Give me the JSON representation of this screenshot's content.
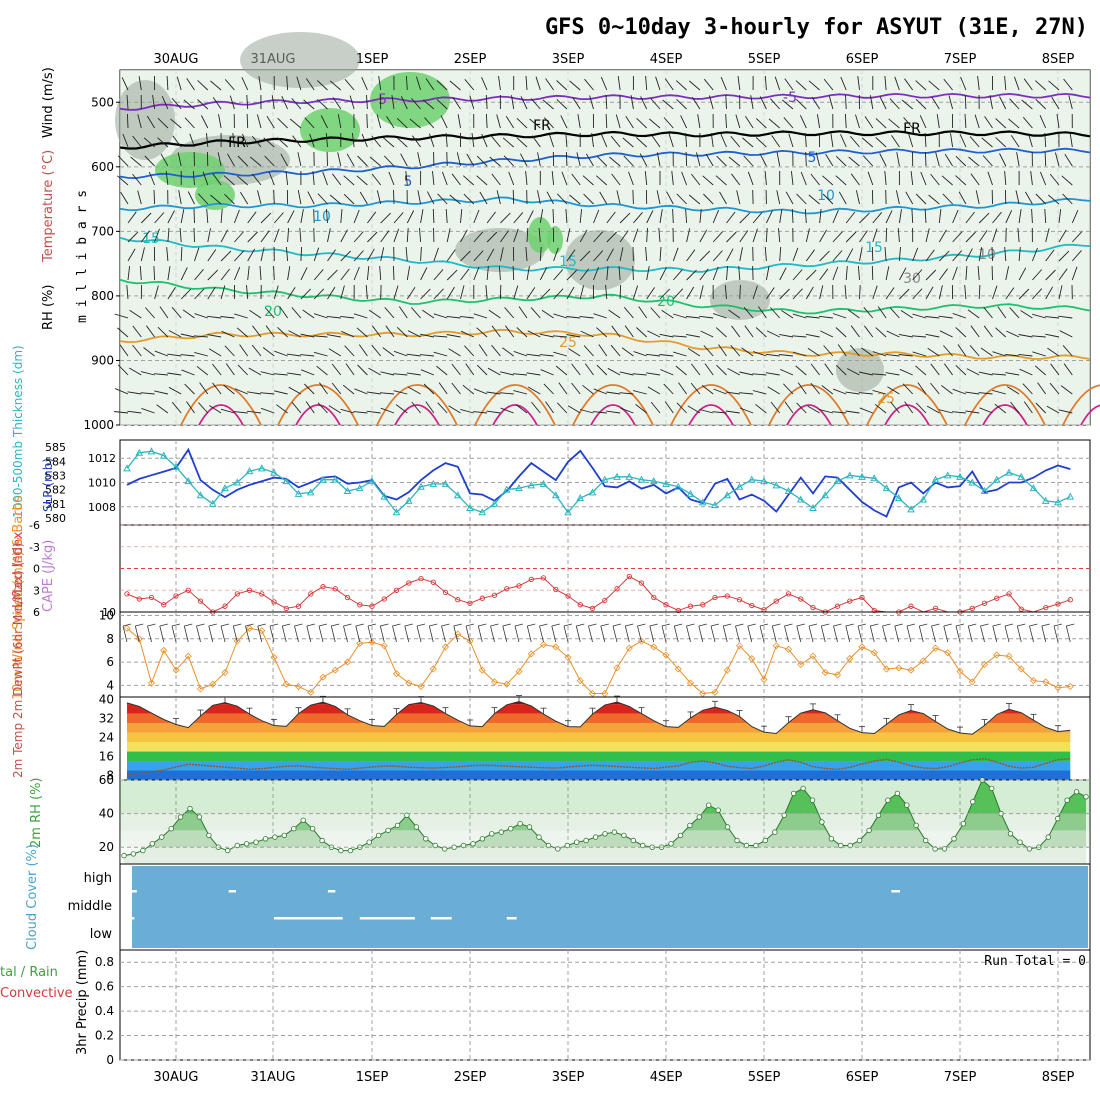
{
  "title": "GFS 0~10day 3-hourly for ASYUT (31E, 27N)",
  "dates": [
    "30AUG",
    "31AUG",
    "1SEP",
    "2SEP",
    "3SEP",
    "4SEP",
    "5SEP",
    "6SEP",
    "7SEP",
    "8SEP"
  ],
  "colors": {
    "panel_border": "#000000",
    "grid": "#a0a0a0",
    "rh_green": "#6fd16f",
    "rh_gray": "#9aa79a",
    "rh_light": "#e3efe3",
    "slp": "#1f3fd0",
    "thickness": "#2bb5c0",
    "lifted": "#d23a3a",
    "wind10": "#e8902a",
    "rh2m": "#3da23d",
    "cloud_bg": "#6aaed6",
    "cloud_bar": "#ffffff"
  },
  "chart_data": [
    {
      "type": "line",
      "panel": "upper-air cross section",
      "ylabel_parts": [
        "RH (%)",
        "Temperature (°C)",
        "Wind (m/s)",
        "m i l l i b a r s"
      ],
      "y_ticks": [
        "500",
        "600",
        "700",
        "800",
        "900",
        "1000"
      ],
      "ylim": [
        1000,
        450
      ],
      "series": [
        {
          "name": "isotherm -5",
          "label": "-5",
          "pressure": [
            510,
            502,
            498,
            496,
            494,
            492,
            492,
            491,
            490,
            490,
            490
          ]
        },
        {
          "name": "freezing level",
          "label": "FR",
          "pressure": [
            570,
            562,
            558,
            555,
            552,
            549,
            550,
            548,
            548,
            548,
            550
          ]
        },
        {
          "name": "isotherm 5",
          "label": "5",
          "pressure": [
            615,
            612,
            608,
            600,
            590,
            582,
            580,
            578,
            576,
            575,
            575
          ]
        },
        {
          "name": "isotherm 10",
          "label": "10",
          "pressure": [
            665,
            660,
            660,
            655,
            650,
            660,
            665,
            670,
            665,
            660,
            650
          ]
        },
        {
          "name": "isotherm 15",
          "label": "15",
          "pressure": [
            710,
            725,
            735,
            745,
            758,
            758,
            760,
            752,
            745,
            735,
            720
          ]
        },
        {
          "name": "isotherm 20",
          "label": "20",
          "pressure": [
            775,
            790,
            800,
            810,
            805,
            800,
            815,
            825,
            820,
            815,
            820
          ]
        },
        {
          "name": "isotherm 25",
          "label": "25",
          "pressure": [
            870,
            860,
            860,
            860,
            855,
            860,
            880,
            890,
            890,
            895,
            895
          ]
        }
      ],
      "annotations": [
        "-5",
        "-5",
        "FR",
        "FR",
        "FR",
        "5",
        "5",
        "10",
        "10",
        "15",
        "15",
        "15",
        "20",
        "20",
        "25",
        "25",
        "30",
        "10"
      ]
    },
    {
      "type": "line",
      "panel": "slp-thickness",
      "ylabel_left": "1000-500mb Thickness (dm)",
      "ylabel_right": "SLP (mb)",
      "left_ticks": [
        "585",
        "584",
        "583",
        "582",
        "581",
        "580"
      ],
      "right_ticks": [
        "1012",
        "1010",
        "1008"
      ],
      "series": [
        {
          "name": "SLP (mb)",
          "values": [
            1009.8,
            1010.3,
            1010.6,
            1010.9,
            1011.2,
            1012.7,
            1010.2,
            1009.4,
            1008.8,
            1009.4,
            1009.8,
            1010.1,
            1010.4,
            1010.3,
            1009.6,
            1010.0,
            1010.4,
            1010.5,
            1009.9,
            1010.0,
            1010.2,
            1008.9,
            1008.6,
            1009.2,
            1010.2,
            1011.0,
            1011.6,
            1011.3,
            1009.1,
            1009.0,
            1008.5,
            1009.3,
            1010.5,
            1011.6,
            1010.9,
            1010.2,
            1011.7,
            1012.6,
            1011.2,
            1009.7,
            1009.6,
            1010.1,
            1009.5,
            1009.8,
            1009.1,
            1009.6,
            1008.6,
            1008.3,
            1009.9,
            1010.3,
            1008.6,
            1009.0,
            1008.5,
            1007.6,
            1009.0,
            1010.4,
            1009.1,
            1010.5,
            1010.4,
            1009.4,
            1008.4,
            1007.7,
            1007.2,
            1009.6,
            1010.0,
            1009.1,
            1010.0,
            1009.6,
            1009.7,
            1010.9,
            1009.2,
            1009.4,
            1010.0,
            1010.0,
            1010.4,
            1011.0,
            1011.4,
            1011.1
          ]
        },
        {
          "name": "Thickness (dm)",
          "values": [
            583.5,
            584.6,
            584.7,
            584.4,
            583.6,
            582.6,
            581.6,
            581.0,
            582.1,
            582.5,
            583.3,
            583.5,
            583.2,
            582.6,
            581.7,
            581.8,
            582.7,
            582.7,
            581.9,
            582.1,
            582.6,
            581.5,
            580.4,
            581.2,
            582.2,
            582.4,
            582.4,
            581.6,
            580.7,
            580.4,
            581.0,
            582.0,
            582.1,
            582.3,
            582.4,
            581.6,
            580.4,
            581.4,
            581.8,
            582.7,
            582.9,
            582.9,
            582.7,
            582.6,
            582.4,
            582.2,
            581.7,
            581.1,
            580.9,
            581.6,
            582.2,
            582.7,
            582.6,
            582.3,
            581.9,
            581.3,
            580.7,
            581.6,
            582.6,
            583.0,
            582.9,
            582.8,
            582.1,
            581.4,
            580.6,
            581.3,
            582.7,
            583.0,
            582.9,
            582.5,
            581.9,
            582.7,
            583.2,
            582.9,
            582.1,
            581.2,
            581.1,
            581.5
          ]
        }
      ]
    },
    {
      "type": "line",
      "panel": "lifted index / cape",
      "ylabel": "Lifted Index",
      "ylabel2": "CAPE (J/kg)",
      "y_ticks": [
        "-6",
        "-3",
        "0",
        "3",
        "6"
      ],
      "right_tick": "10",
      "ylim": [
        -6,
        6
      ],
      "series": [
        {
          "name": "Lifted Index",
          "values": [
            3.5,
            4.2,
            4.0,
            5.0,
            3.8,
            3.0,
            4.5,
            6.0,
            5.2,
            3.5,
            3.0,
            3.5,
            4.6,
            5.5,
            5.2,
            3.5,
            2.5,
            2.8,
            4.0,
            5.0,
            5.2,
            4.2,
            3.0,
            2.0,
            1.4,
            1.9,
            3.3,
            4.3,
            4.8,
            4.1,
            3.7,
            2.8,
            2.4,
            1.5,
            1.3,
            2.9,
            3.8,
            5.0,
            5.5,
            4.4,
            2.8,
            1.1,
            2.0,
            4.0,
            5.0,
            5.8,
            5.2,
            5.0,
            4.0,
            3.8,
            4.3,
            5.1,
            5.7,
            4.5,
            3.5,
            4.2,
            5.4,
            6.0,
            5.2,
            4.5,
            4.0,
            5.8,
            6.5,
            6.0,
            5.2,
            6.8,
            5.5,
            6.2,
            6.0,
            5.5,
            4.8,
            4.1,
            3.5,
            5.6,
            6.2,
            5.4,
            4.9,
            4.3
          ]
        }
      ]
    },
    {
      "type": "line",
      "panel": "10m wind",
      "ylabel": "10m Wind Speed (m/s) & Barbs",
      "y_ticks": [
        "4",
        "6",
        "8",
        "10"
      ],
      "ylim": [
        3,
        10
      ],
      "series": [
        {
          "name": "10m Wind Speed (m/s)",
          "values": [
            8.9,
            8.0,
            4.2,
            7.0,
            5.3,
            6.5,
            3.7,
            4.1,
            5.1,
            7.8,
            8.9,
            8.7,
            6.4,
            4.1,
            3.9,
            3.4,
            4.7,
            5.3,
            6.0,
            7.6,
            7.7,
            7.4,
            5.0,
            4.2,
            3.9,
            5.4,
            7.3,
            8.4,
            7.8,
            5.3,
            4.3,
            4.1,
            5.2,
            6.7,
            7.5,
            7.3,
            6.4,
            4.4,
            3.3,
            3.3,
            5.5,
            7.2,
            7.8,
            7.3,
            6.6,
            5.4,
            4.2,
            3.3,
            3.4,
            5.3,
            7.4,
            6.3,
            4.5,
            7.4,
            7.1,
            5.8,
            6.5,
            5.1,
            4.9,
            6.3,
            7.3,
            6.8,
            5.4,
            5.5,
            5.3,
            6.1,
            7.2,
            6.8,
            5.2,
            4.3,
            5.8,
            6.6,
            6.5,
            5.4,
            4.4,
            4.3,
            3.8,
            3.9
          ]
        }
      ]
    },
    {
      "type": "area",
      "panel": "2m temp",
      "ylabel": "2m Temp 2m DewPt (6hr Min/Max) (°C)",
      "y_ticks": [
        "8",
        "16",
        "24",
        "32",
        "40"
      ],
      "ylim": [
        6,
        41
      ],
      "series": [
        {
          "name": "2m Temp",
          "values": [
            38.5,
            37.0,
            34.2,
            31.5,
            29.4,
            28.1,
            33.0,
            37.5,
            38.6,
            37.1,
            33.8,
            31.0,
            29.0,
            28.6,
            34.0,
            37.6,
            38.8,
            37.0,
            33.5,
            31.0,
            29.0,
            28.6,
            33.6,
            37.8,
            38.7,
            37.2,
            34.0,
            31.2,
            28.8,
            28.5,
            34.0,
            37.7,
            39.1,
            37.2,
            33.8,
            30.8,
            28.5,
            28.4,
            33.8,
            37.6,
            38.9,
            37.0,
            34.0,
            31.0,
            28.5,
            28.2,
            32.2,
            35.4,
            36.7,
            35.3,
            32.8,
            28.5,
            26.2,
            25.6,
            30.2,
            34.2,
            35.6,
            34.3,
            31.0,
            27.8,
            26.0,
            25.6,
            29.5,
            33.4,
            35.3,
            34.0,
            30.7,
            27.5,
            25.8,
            25.3,
            29.0,
            33.6,
            35.8,
            34.4,
            31.2,
            28.2,
            26.4,
            27.0
          ]
        },
        {
          "name": "2m DewPt",
          "values": [
            8.3,
            8.7,
            9.5,
            10.2,
            11.5,
            12.6,
            12.3,
            11.8,
            11.4,
            11.0,
            10.5,
            10.8,
            11.3,
            11.8,
            12.0,
            11.5,
            11.1,
            10.8,
            10.5,
            11.0,
            11.5,
            11.9,
            11.8,
            11.4,
            11.2,
            11.0,
            11.3,
            11.6,
            12.0,
            12.2,
            12.1,
            11.8,
            11.6,
            11.4,
            11.2,
            11.0,
            11.5,
            11.9,
            12.2,
            12.0,
            11.7,
            11.4,
            11.1,
            10.9,
            11.4,
            12.0,
            13.5,
            14.0,
            13.2,
            11.8,
            11.2,
            10.9,
            11.9,
            13.5,
            14.5,
            13.5,
            11.6,
            10.9,
            10.5,
            11.3,
            12.8,
            14.0,
            14.7,
            13.6,
            12.0,
            11.1,
            10.8,
            11.6,
            13.2,
            14.5,
            15.0,
            13.6,
            11.8,
            11.0,
            11.4,
            13.0,
            14.6,
            15.0
          ]
        }
      ]
    },
    {
      "type": "area",
      "panel": "2m rh",
      "ylabel": "2m RH (%)",
      "y_ticks": [
        "20",
        "40",
        "60"
      ],
      "ylim": [
        10,
        60
      ],
      "series": [
        {
          "name": "2m RH",
          "values": [
            15,
            16,
            18,
            22,
            26,
            31,
            38,
            43,
            38,
            27,
            20,
            18,
            21,
            22,
            23,
            25,
            26,
            27,
            31,
            36,
            31,
            24,
            20,
            18,
            18,
            20,
            23,
            27,
            30,
            33,
            39,
            32,
            25,
            21,
            19,
            20,
            21,
            22,
            25,
            28,
            29,
            31,
            34,
            32,
            26,
            21,
            19,
            21,
            23,
            24,
            26,
            28,
            29,
            27,
            24,
            21,
            20,
            20,
            22,
            27,
            33,
            38,
            45,
            42,
            32,
            24,
            21,
            21,
            24,
            29,
            39,
            52,
            55,
            48,
            35,
            25,
            21,
            21,
            24,
            30,
            39,
            48,
            52,
            45,
            33,
            24,
            19,
            19,
            25,
            34,
            47,
            60,
            55,
            40,
            28,
            23,
            19,
            20,
            26,
            37,
            48,
            53,
            50
          ]
        }
      ]
    },
    {
      "type": "table",
      "panel": "cloud cover",
      "ylabel": "Cloud Cover (%)",
      "y_ticks": [
        "high",
        "middle",
        "low"
      ],
      "segments": [
        {
          "level": "high",
          "start": 0.3,
          "end": 0.8
        },
        {
          "level": "high",
          "start": 8.3,
          "end": 8.9
        },
        {
          "level": "high",
          "start": 16.4,
          "end": 17.0
        },
        {
          "level": "high",
          "start": 62.4,
          "end": 63.1
        },
        {
          "level": "middle",
          "start": 0.1,
          "end": 0.6
        },
        {
          "level": "middle",
          "start": 12.0,
          "end": 17.6
        },
        {
          "level": "middle",
          "start": 19.0,
          "end": 23.5
        },
        {
          "level": "middle",
          "start": 24.8,
          "end": 26.5
        },
        {
          "level": "middle",
          "start": 31.0,
          "end": 31.8
        }
      ]
    },
    {
      "type": "line",
      "panel": "3hr precip",
      "ylabel_left1": "tal / Rain",
      "ylabel_left2": "Convective",
      "ylabel": "3hr Precip (mm)",
      "y_ticks": [
        "0",
        "0.2",
        "0.4",
        "0.6",
        "0.8"
      ],
      "ylim": [
        0,
        0.9
      ],
      "annotation": "Run Total = 0",
      "series": [
        {
          "name": "3hr precip",
          "values": []
        }
      ]
    }
  ],
  "ylabels": {
    "upper": "RH (%) Temperature (°C)Wind (m/s)",
    "upper_mb": "m i l l i b a r s",
    "slp_left": "1000-500mb Thickness (dm)",
    "slp_right": "SLP (mb)",
    "li": "Lifted Index",
    "cape": "CAPE (J/kg)",
    "wind10": "10m Wind Speed (m/s) & Barbs",
    "temp2m": "2m Temp 2m DewPt (6hr Min/Max) (°C)",
    "rh2m": "2m RH (%)",
    "cloud": "Cloud Cover (%)",
    "precip_left1": "tal / Rain",
    "precip_left2": "Convective",
    "precip": "3hr Precip (mm)"
  },
  "run_total": "Run Total = 0"
}
